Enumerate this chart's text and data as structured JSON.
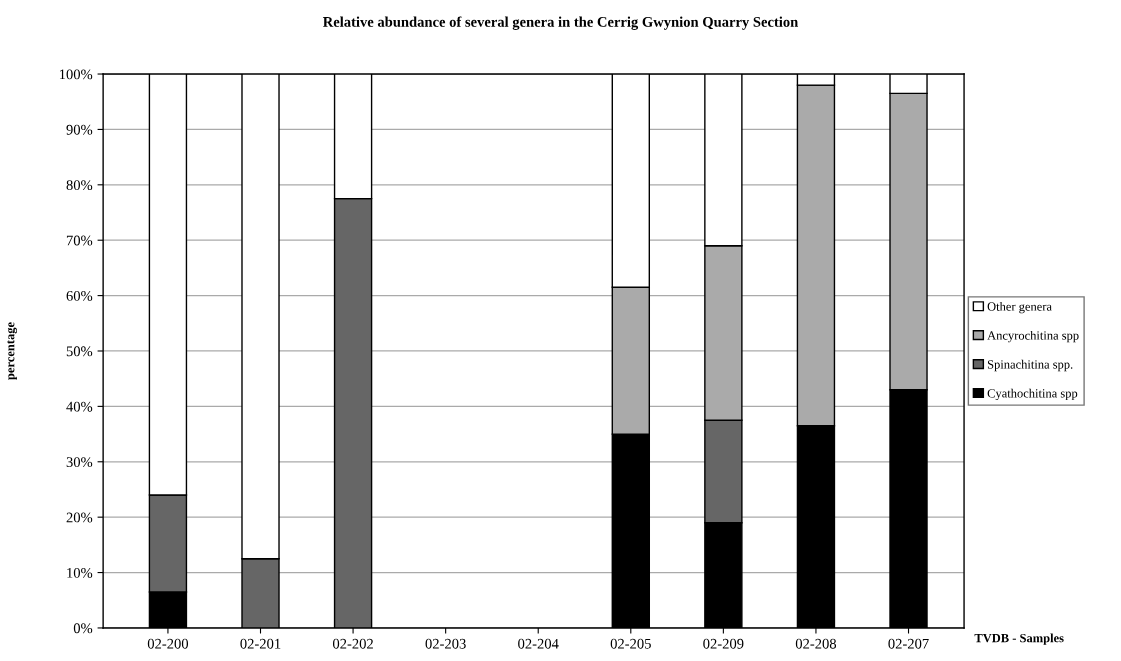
{
  "chart_data": {
    "type": "bar",
    "title": "Relative abundance of several genera in the Cerrig Gwynion Quarry Section",
    "xlabel": "TVDB - Samples",
    "ylabel": "percentage",
    "categories": [
      "02-200",
      "02-201",
      "02-202",
      "02-203",
      "02-204",
      "02-205",
      "02-209",
      "02-208",
      "02-207"
    ],
    "stacked": true,
    "series": [
      {
        "name": "Cyathochitina spp",
        "color": "#000000",
        "values": [
          6.5,
          null,
          null,
          null,
          null,
          35,
          19,
          36.5,
          43
        ]
      },
      {
        "name": "Spinachitina spp.",
        "color": "#666666",
        "values": [
          17.5,
          12.5,
          77.5,
          null,
          null,
          null,
          18.5,
          null,
          null
        ]
      },
      {
        "name": "Ancyrochitina spp",
        "color": "#aaaaaa",
        "values": [
          null,
          null,
          null,
          null,
          null,
          26.5,
          31.5,
          61.5,
          53.5
        ]
      },
      {
        "name": "Other genera",
        "color": "#ffffff",
        "values": [
          76,
          87.5,
          22.5,
          null,
          null,
          38.5,
          31,
          2,
          3.5
        ]
      }
    ],
    "ylim": [
      0,
      100
    ],
    "yticks": [
      {
        "value": 0,
        "label": "0%"
      },
      {
        "value": 10,
        "label": "10%"
      },
      {
        "value": 20,
        "label": "20%"
      },
      {
        "value": 30,
        "label": "30%"
      },
      {
        "value": 40,
        "label": "40%"
      },
      {
        "value": 50,
        "label": "50%"
      },
      {
        "value": 60,
        "label": "60%"
      },
      {
        "value": 70,
        "label": "70%"
      },
      {
        "value": 80,
        "label": "80%"
      },
      {
        "value": 90,
        "label": "90%"
      },
      {
        "value": 100,
        "label": "100%"
      }
    ],
    "grid": "y",
    "legend": "right"
  }
}
